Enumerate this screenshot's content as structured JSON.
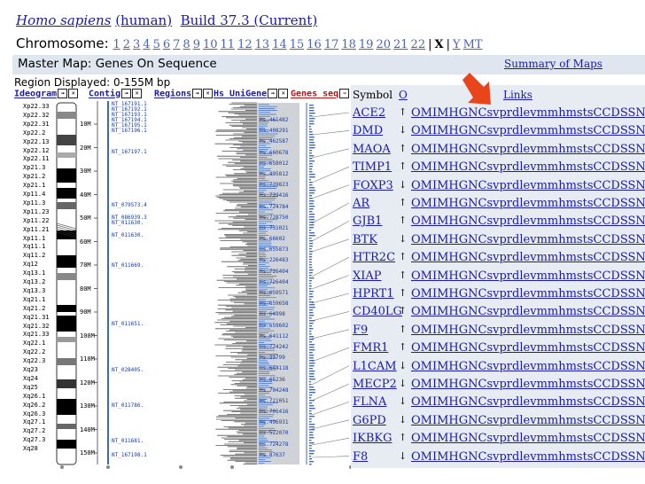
{
  "header": {
    "organism": "Homo sapiens",
    "organism_common": "(human)",
    "build": "Build 37.3 (Current)"
  },
  "chromosome_nav": {
    "label": "Chromosome:",
    "items": [
      "1",
      "2",
      "3",
      "4",
      "5",
      "6",
      "7",
      "8",
      "9",
      "10",
      "11",
      "12",
      "13",
      "14",
      "15",
      "16",
      "17",
      "18",
      "19",
      "20",
      "21",
      "22",
      "|",
      "X",
      "|",
      "Y",
      "MT"
    ],
    "current": "X"
  },
  "master_map": {
    "title": "Master Map: Genes On Sequence",
    "summary_link": "Summary of Maps",
    "region": "Region Displayed: 0-155M bp"
  },
  "tracks": [
    {
      "label": "Ideogram"
    },
    {
      "label": "Contig"
    },
    {
      "label": "Regions"
    },
    {
      "label": "Hs UniGene"
    },
    {
      "label": "Genes_seq"
    }
  ],
  "gene_table": {
    "headers": {
      "symbol": "Symbol",
      "orient": "O",
      "links": "Links"
    },
    "link_labels": [
      "OMIM",
      "HGNC",
      "sv",
      "pr",
      "dl",
      "ev",
      "mm",
      "hm",
      "sts",
      "CCDS",
      "SNP"
    ],
    "rows": [
      {
        "symbol": "ACE2",
        "orient": "↑"
      },
      {
        "symbol": "DMD",
        "orient": "↓"
      },
      {
        "symbol": "MAOA",
        "orient": "↑"
      },
      {
        "symbol": "TIMP1",
        "orient": "↑"
      },
      {
        "symbol": "FOXP3",
        "orient": "↓"
      },
      {
        "symbol": "AR",
        "orient": "↑"
      },
      {
        "symbol": "GJB1",
        "orient": "↑"
      },
      {
        "symbol": "BTK",
        "orient": "↓"
      },
      {
        "symbol": "HTR2C",
        "orient": "↑"
      },
      {
        "symbol": "XIAP",
        "orient": "↑"
      },
      {
        "symbol": "HPRT1",
        "orient": "↑"
      },
      {
        "symbol": "CD40LG",
        "orient": "↑"
      },
      {
        "symbol": "F9",
        "orient": "↑"
      },
      {
        "symbol": "FMR1",
        "orient": "↑"
      },
      {
        "symbol": "L1CAM",
        "orient": "↓"
      },
      {
        "symbol": "MECP2",
        "orient": "↓"
      },
      {
        "symbol": "FLNA",
        "orient": "↓"
      },
      {
        "symbol": "G6PD",
        "orient": "↓"
      },
      {
        "symbol": "IKBKG",
        "orient": "↑"
      },
      {
        "symbol": "F8",
        "orient": "↓"
      }
    ]
  },
  "ideogram_bands": [
    "Xp22.33",
    "Xp22.32",
    "Xp22.31",
    "Xp22.2",
    "Xp22.13",
    "Xp22.12",
    "Xp22.11",
    "Xp21.3",
    "Xp21.2",
    "Xp21.1",
    "Xp11.4",
    "Xp11.3",
    "Xp11.23",
    "Xp11.22",
    "Xp11.21",
    "Xp11.1",
    "Xq11.1",
    "Xq11.2",
    "Xq12",
    "Xq13.1",
    "Xq13.2",
    "Xq13.3",
    "Xq21.1",
    "Xq21.2",
    "Xq21.31",
    "Xq21.32",
    "Xq21.33",
    "Xq22.1",
    "Xq22.2",
    "Xq22.3",
    "Xq23",
    "Xq24",
    "Xq25",
    "Xq26.1",
    "Xq26.2",
    "Xq26.3",
    "Xq27.1",
    "Xq27.2",
    "Xq27.3",
    "Xq28"
  ],
  "positions": [
    "10M",
    "20M",
    "30M",
    "40M",
    "50M",
    "60M",
    "70M",
    "80M",
    "90M",
    "100M",
    "110M",
    "120M",
    "130M",
    "140M",
    "150M"
  ],
  "contigs": [
    "NT_167191.1",
    "NT_167192.1",
    "NT_167193.1",
    "NT_167194.1",
    "NT_167195.1",
    "NT_167196.1",
    "NT_167197.1",
    "NT_079573.4",
    "NT_086939.3",
    "NT_011630.",
    "NT_011630.",
    "NT_011669.",
    "NT_011651.",
    "NT_028405.",
    "NT_011786.",
    "NT_011681.",
    "NT_167198.1"
  ],
  "unigene_ids": [
    "Hs.461482",
    "Hs.408291",
    "Hs.462587",
    "Hs.660678",
    "Hs.658012",
    "Hs.495812",
    "Hs.739823",
    "Hs.729416",
    "Hs.724784",
    "Hs.728750",
    "Hs.731021",
    "Hs.66602",
    "Hs.655873",
    "Hs.226483",
    "Hs.726404",
    "Hs.726404",
    "Hs.659571",
    "Hs.659658",
    "Hs.64998",
    "Hs.659602",
    "Hs.641112",
    "Hs.724242",
    "Hs.23799",
    "Hs.644118",
    "Hs.65236",
    "Hs.704248",
    "Hs.721051",
    "Hs.701416",
    "Hs.496931",
    "Hs.522070",
    "Hs.724278",
    "Hs.87637"
  ],
  "colors": {
    "link": "#1a1aa6",
    "panel": "#e7ecf3",
    "bar": "#dfe6f0",
    "accent_arrow": "#e8451c",
    "nav_link": "#4a63b8"
  }
}
